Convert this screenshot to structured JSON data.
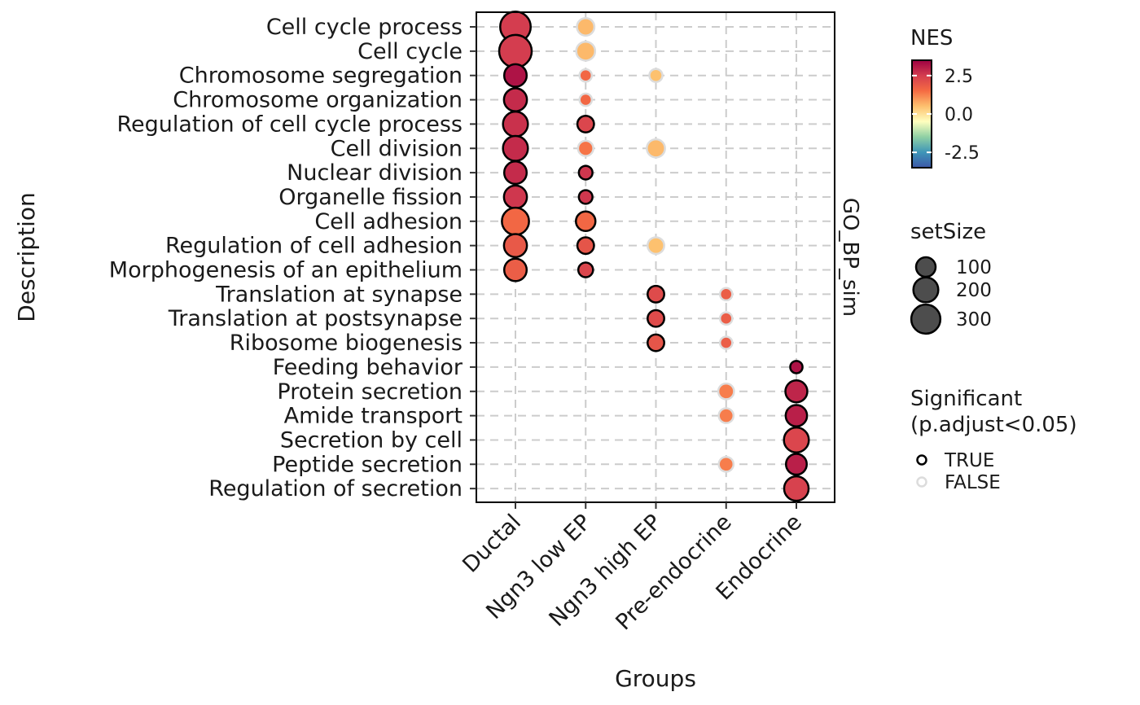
{
  "chart_data": {
    "type": "scatter",
    "xlabel": "Groups",
    "ylabel": "Description",
    "strip_label": "GO_BP_sim",
    "groups": [
      "Ductal",
      "Ngn3 low EP",
      "Ngn3 high EP",
      "Pre-endocrine",
      "Endocrine"
    ],
    "terms": [
      "Cell cycle process",
      "Cell cycle",
      "Chromosome segregation",
      "Chromosome organization",
      "Regulation of cell cycle process",
      "Cell division",
      "Nuclear division",
      "Organelle fission",
      "Cell adhesion",
      "Regulation of cell adhesion",
      "Morphogenesis of an epithelium",
      "Translation at synapse",
      "Translation at postsynapse",
      "Ribosome biogenesis",
      "Feeding behavior",
      "Protein secretion",
      "Amide transport",
      "Secretion by cell",
      "Peptide secretion",
      "Regulation of secretion"
    ],
    "points": [
      {
        "term": "Cell cycle process",
        "group": "Ductal",
        "nes": 2.5,
        "setSize": 340,
        "significant": true
      },
      {
        "term": "Cell cycle",
        "group": "Ductal",
        "nes": 2.5,
        "setSize": 400,
        "significant": true
      },
      {
        "term": "Chromosome segregation",
        "group": "Ductal",
        "nes": 3.2,
        "setSize": 150,
        "significant": true
      },
      {
        "term": "Chromosome organization",
        "group": "Ductal",
        "nes": 2.8,
        "setSize": 160,
        "significant": true
      },
      {
        "term": "Regulation of cell cycle process",
        "group": "Ductal",
        "nes": 2.7,
        "setSize": 200,
        "significant": true
      },
      {
        "term": "Cell division",
        "group": "Ductal",
        "nes": 2.8,
        "setSize": 200,
        "significant": true
      },
      {
        "term": "Nuclear division",
        "group": "Ductal",
        "nes": 2.8,
        "setSize": 150,
        "significant": true
      },
      {
        "term": "Organelle fission",
        "group": "Ductal",
        "nes": 2.6,
        "setSize": 160,
        "significant": true
      },
      {
        "term": "Cell adhesion",
        "group": "Ductal",
        "nes": 1.6,
        "setSize": 250,
        "significant": true
      },
      {
        "term": "Regulation of cell adhesion",
        "group": "Ductal",
        "nes": 1.9,
        "setSize": 160,
        "significant": true
      },
      {
        "term": "Morphogenesis of an epithelium",
        "group": "Ductal",
        "nes": 1.8,
        "setSize": 150,
        "significant": true
      },
      {
        "term": "Cell cycle process",
        "group": "Ngn3 low EP",
        "nes": 0.6,
        "setSize": 70,
        "significant": false
      },
      {
        "term": "Cell cycle",
        "group": "Ngn3 low EP",
        "nes": 0.6,
        "setSize": 90,
        "significant": false
      },
      {
        "term": "Chromosome segregation",
        "group": "Ngn3 low EP",
        "nes": 1.6,
        "setSize": 20,
        "significant": false
      },
      {
        "term": "Chromosome organization",
        "group": "Ngn3 low EP",
        "nes": 1.6,
        "setSize": 20,
        "significant": false
      },
      {
        "term": "Regulation of cell cycle process",
        "group": "Ngn3 low EP",
        "nes": 2.3,
        "setSize": 60,
        "significant": true
      },
      {
        "term": "Cell division",
        "group": "Ngn3 low EP",
        "nes": 1.4,
        "setSize": 45,
        "significant": false
      },
      {
        "term": "Nuclear division",
        "group": "Ngn3 low EP",
        "nes": 2.6,
        "setSize": 30,
        "significant": true
      },
      {
        "term": "Organelle fission",
        "group": "Ngn3 low EP",
        "nes": 2.6,
        "setSize": 30,
        "significant": true
      },
      {
        "term": "Cell adhesion",
        "group": "Ngn3 low EP",
        "nes": 1.6,
        "setSize": 100,
        "significant": true
      },
      {
        "term": "Regulation of cell adhesion",
        "group": "Ngn3 low EP",
        "nes": 2.0,
        "setSize": 60,
        "significant": true
      },
      {
        "term": "Morphogenesis of an epithelium",
        "group": "Ngn3 low EP",
        "nes": 2.3,
        "setSize": 40,
        "significant": true
      },
      {
        "term": "Chromosome segregation",
        "group": "Ngn3 high EP",
        "nes": 0.5,
        "setSize": 25,
        "significant": false
      },
      {
        "term": "Cell division",
        "group": "Ngn3 high EP",
        "nes": 0.6,
        "setSize": 80,
        "significant": false
      },
      {
        "term": "Regulation of cell adhesion",
        "group": "Ngn3 high EP",
        "nes": 0.5,
        "setSize": 60,
        "significant": false
      },
      {
        "term": "Translation at synapse",
        "group": "Ngn3 high EP",
        "nes": 2.2,
        "setSize": 60,
        "significant": true
      },
      {
        "term": "Translation at postsynapse",
        "group": "Ngn3 high EP",
        "nes": 2.2,
        "setSize": 60,
        "significant": true
      },
      {
        "term": "Ribosome biogenesis",
        "group": "Ngn3 high EP",
        "nes": 2.0,
        "setSize": 60,
        "significant": true
      },
      {
        "term": "Translation at synapse",
        "group": "Pre-endocrine",
        "nes": 1.8,
        "setSize": 20,
        "significant": false
      },
      {
        "term": "Translation at postsynapse",
        "group": "Pre-endocrine",
        "nes": 1.8,
        "setSize": 20,
        "significant": false
      },
      {
        "term": "Ribosome biogenesis",
        "group": "Pre-endocrine",
        "nes": 1.8,
        "setSize": 20,
        "significant": false
      },
      {
        "term": "Protein secretion",
        "group": "Pre-endocrine",
        "nes": 1.3,
        "setSize": 50,
        "significant": false
      },
      {
        "term": "Amide transport",
        "group": "Pre-endocrine",
        "nes": 1.3,
        "setSize": 40,
        "significant": false
      },
      {
        "term": "Peptide secretion",
        "group": "Pre-endocrine",
        "nes": 1.3,
        "setSize": 40,
        "significant": false
      },
      {
        "term": "Feeding behavior",
        "group": "Endocrine",
        "nes": 3.2,
        "setSize": 20,
        "significant": true
      },
      {
        "term": "Protein secretion",
        "group": "Endocrine",
        "nes": 2.9,
        "setSize": 140,
        "significant": true
      },
      {
        "term": "Amide transport",
        "group": "Endocrine",
        "nes": 3.0,
        "setSize": 130,
        "significant": true
      },
      {
        "term": "Secretion by cell",
        "group": "Endocrine",
        "nes": 2.3,
        "setSize": 200,
        "significant": true
      },
      {
        "term": "Peptide secretion",
        "group": "Endocrine",
        "nes": 3.0,
        "setSize": 120,
        "significant": true
      },
      {
        "term": "Regulation of secretion",
        "group": "Endocrine",
        "nes": 2.4,
        "setSize": 190,
        "significant": true
      }
    ],
    "legend": {
      "color": {
        "title": "NES",
        "ticks": [
          "2.5",
          "0.0",
          "-2.5"
        ],
        "tick_values": [
          2.5,
          0,
          -2.5
        ],
        "range": [
          -3.5,
          3.5
        ],
        "colors": [
          "#3d58a8",
          "#3e95b8",
          "#8fd0a4",
          "#ffffbf",
          "#fdc16f",
          "#f56c43",
          "#d43d4f",
          "#9e0142"
        ]
      },
      "size": {
        "title": "setSize",
        "values": [
          100,
          200,
          300
        ],
        "labels": [
          "100",
          "200",
          "300"
        ]
      },
      "significant": {
        "title_lines": [
          "Significant",
          "(p.adjust<0.05)"
        ],
        "items": [
          {
            "label": "TRUE",
            "stroke": "#000000"
          },
          {
            "label": "FALSE",
            "stroke": "#dcdcdc"
          }
        ]
      }
    },
    "grid": true,
    "grid_style": "dashed",
    "legend_position": "right"
  }
}
